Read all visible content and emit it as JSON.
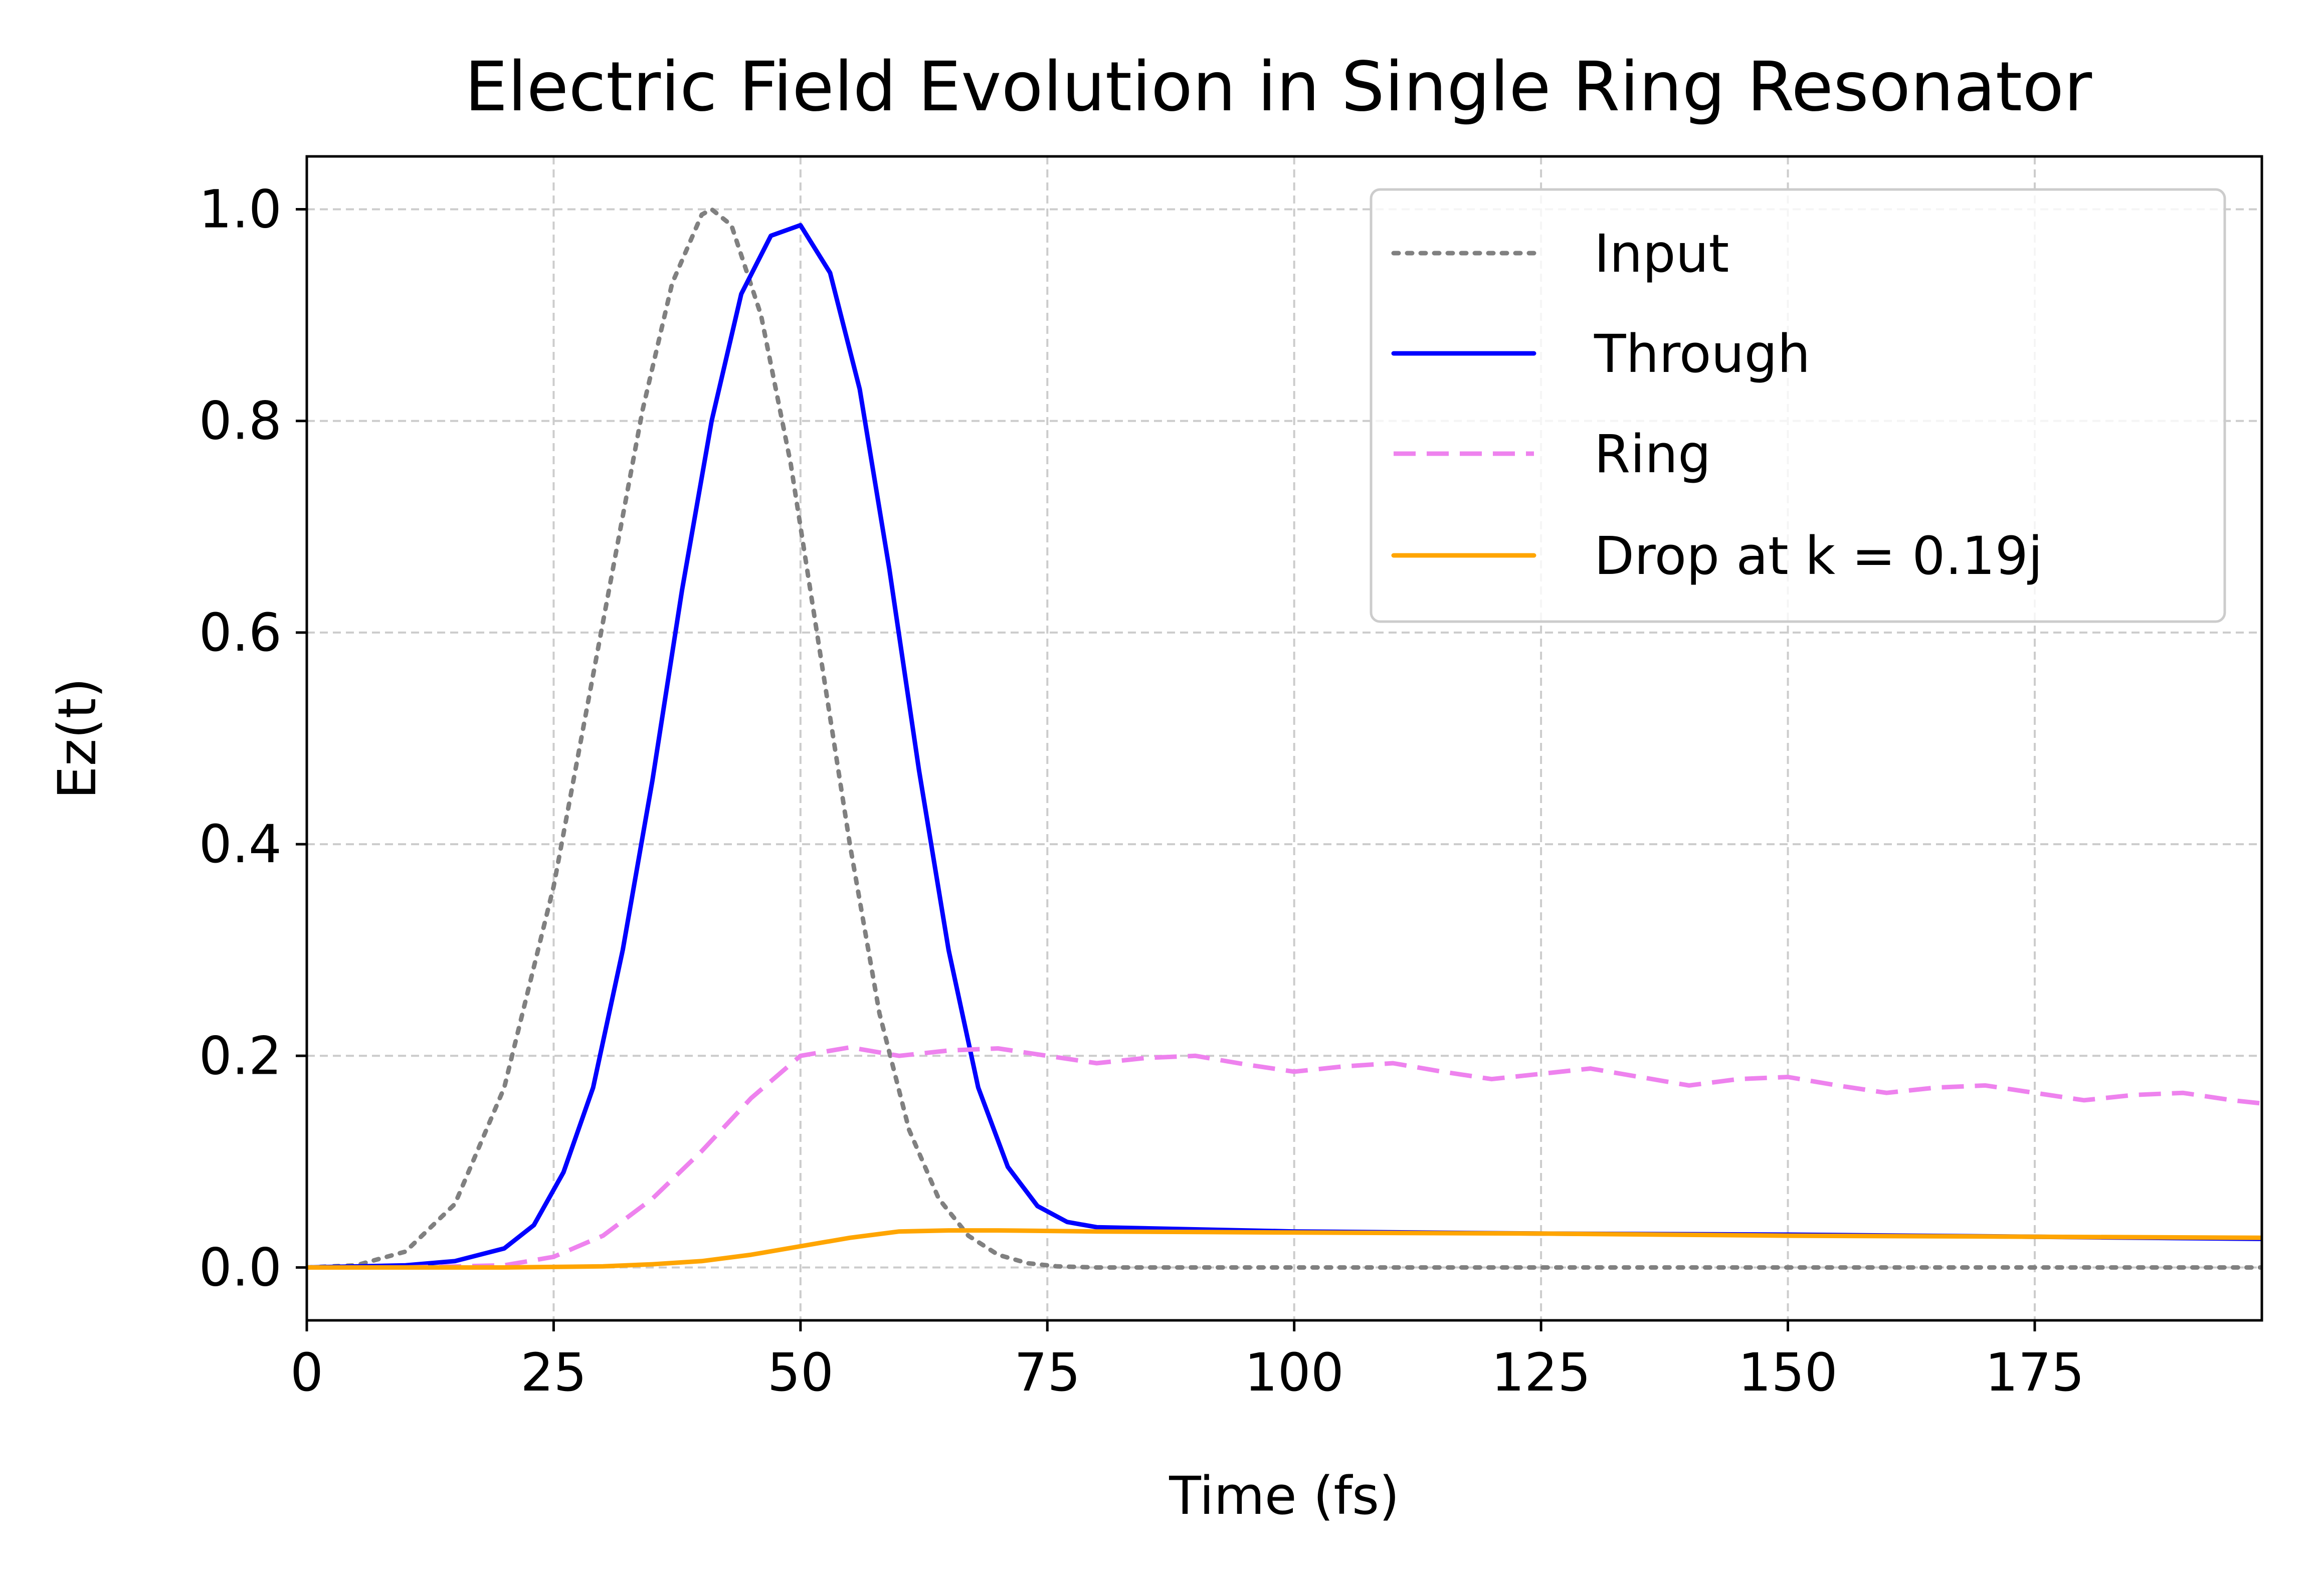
{
  "chart_data": {
    "type": "line",
    "title": "Electric Field Evolution in Single Ring Resonator",
    "xlabel": "Time (fs)",
    "ylabel": "Ez(t)",
    "xlim": [
      0,
      198
    ],
    "ylim": [
      -0.05,
      1.05
    ],
    "xticks": [
      0,
      25,
      50,
      75,
      100,
      125,
      150,
      175
    ],
    "xtick_labels": [
      "0",
      "25",
      "50",
      "75",
      "100",
      "125",
      "150",
      "175"
    ],
    "yticks": [
      0.0,
      0.2,
      0.4,
      0.6,
      0.8,
      1.0
    ],
    "ytick_labels": [
      "0.0",
      "0.2",
      "0.4",
      "0.6",
      "0.8",
      "1.0"
    ],
    "grid": true,
    "legend_position": "top-right",
    "series": [
      {
        "name": "Input",
        "color": "#808080",
        "style": "dotted",
        "x": [
          0,
          5,
          10,
          15,
          20,
          25,
          28,
          31,
          34,
          37,
          40,
          41,
          43,
          46,
          49,
          52,
          55,
          58,
          61,
          64,
          67,
          70,
          73,
          76,
          80,
          90,
          120,
          150,
          198
        ],
        "y": [
          0.0,
          0.002,
          0.015,
          0.06,
          0.17,
          0.36,
          0.51,
          0.66,
          0.81,
          0.93,
          0.995,
          1.0,
          0.985,
          0.9,
          0.76,
          0.58,
          0.4,
          0.24,
          0.13,
          0.065,
          0.03,
          0.012,
          0.004,
          0.001,
          0.0,
          0.0,
          0.0,
          0.0,
          0.0
        ]
      },
      {
        "name": "Through",
        "color": "#0000ff",
        "style": "solid",
        "x": [
          0,
          10,
          15,
          20,
          23,
          26,
          29,
          32,
          35,
          38,
          41,
          44,
          47,
          50,
          53,
          56,
          59,
          62,
          65,
          68,
          71,
          74,
          77,
          80,
          90,
          100,
          125,
          150,
          175,
          198
        ],
        "y": [
          0.0,
          0.002,
          0.006,
          0.018,
          0.04,
          0.09,
          0.17,
          0.3,
          0.46,
          0.64,
          0.8,
          0.92,
          0.975,
          0.985,
          0.94,
          0.83,
          0.66,
          0.47,
          0.3,
          0.17,
          0.095,
          0.058,
          0.043,
          0.038,
          0.036,
          0.034,
          0.032,
          0.031,
          0.029,
          0.027
        ]
      },
      {
        "name": "Ring",
        "color": "#ee82ee",
        "style": "dashed",
        "x": [
          0,
          10,
          20,
          25,
          30,
          35,
          40,
          45,
          50,
          55,
          60,
          65,
          70,
          75,
          80,
          85,
          90,
          95,
          100,
          105,
          110,
          115,
          120,
          125,
          130,
          135,
          140,
          145,
          150,
          155,
          160,
          165,
          170,
          175,
          180,
          185,
          190,
          195,
          198
        ],
        "y": [
          0.0,
          0.0,
          0.002,
          0.01,
          0.03,
          0.065,
          0.11,
          0.16,
          0.2,
          0.208,
          0.2,
          0.205,
          0.207,
          0.2,
          0.193,
          0.198,
          0.2,
          0.192,
          0.185,
          0.19,
          0.193,
          0.185,
          0.178,
          0.183,
          0.188,
          0.18,
          0.172,
          0.178,
          0.18,
          0.172,
          0.165,
          0.17,
          0.172,
          0.165,
          0.158,
          0.163,
          0.165,
          0.158,
          0.155
        ]
      },
      {
        "name": "Drop at k = 0.19j",
        "color": "#ffa500",
        "style": "solid",
        "x": [
          0,
          20,
          30,
          35,
          40,
          45,
          50,
          55,
          60,
          65,
          70,
          80,
          100,
          125,
          150,
          175,
          198
        ],
        "y": [
          0.0,
          0.0,
          0.001,
          0.003,
          0.006,
          0.012,
          0.02,
          0.028,
          0.034,
          0.035,
          0.035,
          0.034,
          0.033,
          0.032,
          0.03,
          0.029,
          0.028
        ]
      }
    ]
  }
}
